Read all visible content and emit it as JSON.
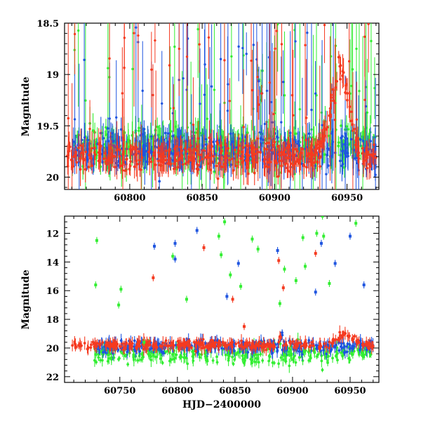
{
  "chart_data": [
    {
      "type": "scatter",
      "panel": "top",
      "xlabel": "",
      "ylabel": "Magnitude",
      "xlim": [
        60755,
        60972
      ],
      "ylim": [
        20.12,
        18.5
      ],
      "y_inverted": true,
      "xticks": [
        60800,
        60850,
        60900,
        60950
      ],
      "xtick_labels": [
        "60800",
        "60850",
        "60900",
        "60950"
      ],
      "yticks": [
        18.5,
        19,
        19.5,
        20
      ],
      "ytick_labels": [
        "18.5",
        "19",
        "19.5",
        "20"
      ],
      "series": [
        {
          "name": "green",
          "color": "#33ee33",
          "typical_magnitude_range": [
            19.3,
            20.1
          ],
          "x_range": [
            60760,
            60970
          ]
        },
        {
          "name": "blue",
          "color": "#1f55e0",
          "typical_magnitude_range": [
            19.4,
            20.1
          ],
          "x_range": [
            60760,
            60970
          ]
        },
        {
          "name": "red",
          "color": "#f53a20",
          "typical_magnitude_range": [
            19.5,
            20.1
          ],
          "x_range": [
            60756,
            60970
          ],
          "bump_peak": {
            "x": 60945,
            "magnitude": 18.9
          }
        }
      ]
    },
    {
      "type": "scatter",
      "panel": "bottom",
      "xlabel": "HJD−2400000",
      "ylabel": "Magnitude",
      "xlim": [
        60702,
        60975
      ],
      "ylim": [
        22.4,
        10.8
      ],
      "y_inverted": true,
      "xticks": [
        60750,
        60800,
        60850,
        60900,
        60950
      ],
      "xtick_labels": [
        "60750",
        "60800",
        "60850",
        "60900",
        "60950"
      ],
      "yticks": [
        12,
        14,
        16,
        18,
        20,
        22
      ],
      "ytick_labels": [
        "12",
        "14",
        "16",
        "18",
        "20",
        "22"
      ],
      "series": [
        {
          "name": "green",
          "color": "#33ee33",
          "typical_magnitude_range": [
            19.0,
            21.8
          ],
          "x_range": [
            60728,
            60970
          ]
        },
        {
          "name": "blue",
          "color": "#1f55e0",
          "typical_magnitude_range": [
            19.0,
            20.8
          ],
          "x_range": [
            60728,
            60970
          ]
        },
        {
          "name": "red",
          "color": "#f53a20",
          "typical_magnitude_range": [
            19.2,
            20.4
          ],
          "x_range": [
            60708,
            60970
          ],
          "bump_peak": {
            "x": 60945,
            "magnitude": 18.9
          }
        }
      ],
      "outliers": [
        {
          "series": "green",
          "x": 60730,
          "y": 12.5
        },
        {
          "series": "green",
          "x": 60729,
          "y": 15.6
        },
        {
          "series": "green",
          "x": 60751,
          "y": 15.9
        },
        {
          "series": "green",
          "x": 60749,
          "y": 17.0
        },
        {
          "series": "green",
          "x": 60771,
          "y": 19.6
        },
        {
          "series": "green",
          "x": 60796,
          "y": 13.6
        },
        {
          "series": "green",
          "x": 60808,
          "y": 16.6
        },
        {
          "series": "green",
          "x": 60836,
          "y": 12.2
        },
        {
          "series": "green",
          "x": 60841,
          "y": 11.2
        },
        {
          "series": "green",
          "x": 60838,
          "y": 13.5
        },
        {
          "series": "green",
          "x": 60846,
          "y": 14.9
        },
        {
          "series": "green",
          "x": 60855,
          "y": 15.7
        },
        {
          "series": "green",
          "x": 60865,
          "y": 12.4
        },
        {
          "series": "green",
          "x": 60870,
          "y": 13.1
        },
        {
          "series": "green",
          "x": 60893,
          "y": 14.5
        },
        {
          "series": "green",
          "x": 60903,
          "y": 15.3
        },
        {
          "series": "green",
          "x": 60909,
          "y": 12.3
        },
        {
          "series": "green",
          "x": 60911,
          "y": 14.3
        },
        {
          "series": "green",
          "x": 60921,
          "y": 12.0
        },
        {
          "series": "green",
          "x": 60926,
          "y": 10.8
        },
        {
          "series": "green",
          "x": 60927,
          "y": 12.2
        },
        {
          "series": "green",
          "x": 60932,
          "y": 15.5
        },
        {
          "series": "green",
          "x": 60955,
          "y": 11.3
        },
        {
          "series": "green",
          "x": 60889,
          "y": 16.9
        },
        {
          "series": "blue",
          "x": 60780,
          "y": 12.9
        },
        {
          "series": "blue",
          "x": 60798,
          "y": 12.7
        },
        {
          "series": "blue",
          "x": 60798,
          "y": 13.8
        },
        {
          "series": "blue",
          "x": 60817,
          "y": 11.8
        },
        {
          "series": "blue",
          "x": 60853,
          "y": 14.1
        },
        {
          "series": "blue",
          "x": 60887,
          "y": 13.2
        },
        {
          "series": "blue",
          "x": 60925,
          "y": 12.7
        },
        {
          "series": "blue",
          "x": 60937,
          "y": 14.1
        },
        {
          "series": "blue",
          "x": 60950,
          "y": 12.2
        },
        {
          "series": "blue",
          "x": 60962,
          "y": 15.6
        },
        {
          "series": "blue",
          "x": 60843,
          "y": 16.4
        },
        {
          "series": "blue",
          "x": 60920,
          "y": 16.1
        },
        {
          "series": "red",
          "x": 60779,
          "y": 15.1
        },
        {
          "series": "red",
          "x": 60823,
          "y": 13.0
        },
        {
          "series": "red",
          "x": 60888,
          "y": 13.9
        },
        {
          "series": "red",
          "x": 60892,
          "y": 15.8
        },
        {
          "series": "red",
          "x": 60920,
          "y": 13.4
        },
        {
          "series": "red",
          "x": 60848,
          "y": 16.6
        },
        {
          "series": "red",
          "x": 60858,
          "y": 18.5
        }
      ]
    }
  ]
}
